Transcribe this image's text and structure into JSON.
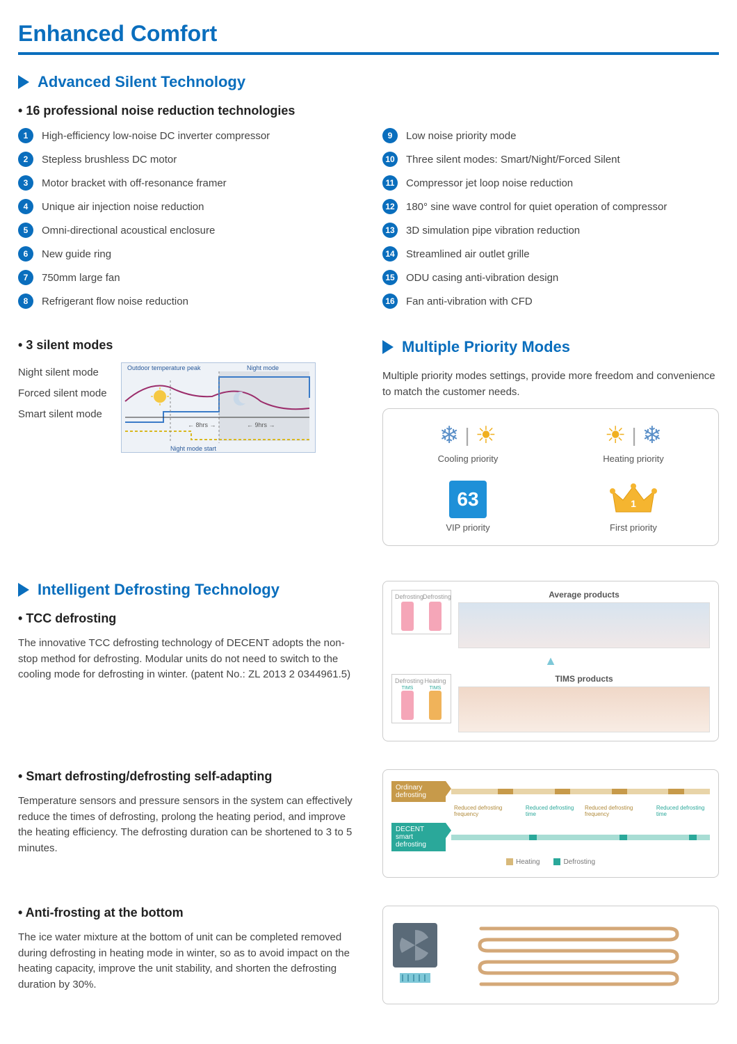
{
  "colors": {
    "primary": "#0a6ebd",
    "text": "#444",
    "pink": "#f5a6b8",
    "orange": "#f0b35a",
    "teal": "#2aa89a",
    "tan": "#d8b97a",
    "lightblue": "#7ec8d8"
  },
  "page_title": "Enhanced Comfort",
  "sec1": {
    "heading": "Advanced Silent Technology",
    "sub1": "16 professional noise reduction technologies",
    "techs_left": [
      "High-efficiency low-noise DC inverter compressor",
      "Stepless brushless DC motor",
      "Motor bracket with off-resonance framer",
      "Unique air injection noise reduction",
      "Omni-directional acoustical enclosure",
      "New guide ring",
      "750mm large fan",
      "Refrigerant flow noise reduction"
    ],
    "techs_right": [
      "Low noise priority mode",
      "Three silent modes: Smart/Night/Forced Silent",
      "Compressor jet loop noise reduction",
      "180° sine wave control for quiet operation of compressor",
      "3D simulation pipe vibration reduction",
      "Streamlined air outlet grille",
      "ODU casing anti-vibration design",
      "Fan anti-vibration with CFD"
    ],
    "sub2": "3 silent modes",
    "modes": [
      "Night silent mode",
      "Forced silent mode",
      "Smart silent mode"
    ],
    "chart": {
      "label_peak": "Outdoor temperature peak",
      "label_night": "Night mode",
      "label_start": "Night mode start",
      "span1": "8hrs",
      "span2": "9hrs"
    }
  },
  "sec2": {
    "heading": "Multiple Priority Modes",
    "body": "Multiple priority modes settings, provide more freedom and convenience to match the customer needs.",
    "items": [
      {
        "label": "Cooling priority"
      },
      {
        "label": "Heating priority"
      },
      {
        "label": "VIP priority",
        "vip": "63"
      },
      {
        "label": "First priority"
      }
    ]
  },
  "sec3": {
    "heading": "Intelligent Defrosting Technology",
    "tcc": {
      "title": "TCC defrosting",
      "body": "The innovative TCC defrosting technology of DECENT adopts the non-stop method for defrosting. Modular units do not need to switch to the cooling mode for defrosting in winter. (patent No.: ZL 2013 2 0344961.5)",
      "compare": {
        "avg_title": "Average products",
        "tims_title": "TIMS products",
        "labels_avg": [
          "Defrosting",
          "Defrosting"
        ],
        "labels_tims": [
          "Defrosting",
          "Heating"
        ],
        "sublabel": "TIMS"
      }
    },
    "smart": {
      "title": "Smart defrosting/defrosting self-adapting",
      "body": "Temperature sensors and pressure sensors in the system can effectively reduce the times of defrosting, prolong the heating period, and improve the heating efficiency. The defrosting duration can be shortened to 3 to 5 minutes.",
      "timeline": {
        "row1_label": "Ordinary defrosting",
        "row2_label": "DECENT smart defrosting",
        "sub1": "Reduced defrosting frequency",
        "sub2": "Reduced defrosting time",
        "sub3": "Reduced defrosting frequency",
        "sub4": "Reduced defrosting time",
        "legend1": "Heating",
        "legend2": "Defrosting"
      }
    },
    "anti": {
      "title": "Anti-frosting at the bottom",
      "body": "The ice water mixture at the bottom of unit can be completed removed during defrosting in heating mode in winter, so as to avoid impact on the heating capacity, improve the unit stability, and shorten the defrosting duration by 30%."
    }
  }
}
